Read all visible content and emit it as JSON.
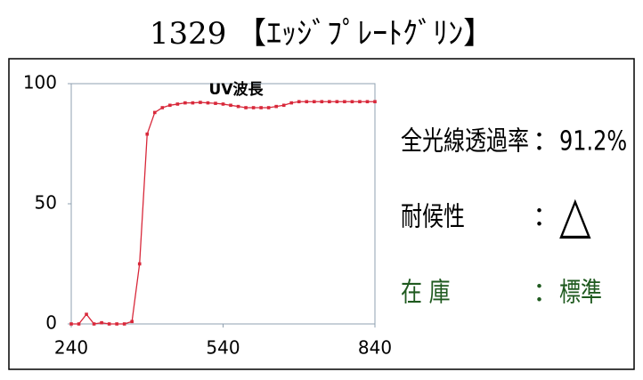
{
  "header": {
    "title": "1329 【ｴｯｼﾞﾌﾟﾚｰﾄｸﾞﾘﾝ】"
  },
  "specs": [
    {
      "label": "全光線透過率",
      "sep": "：",
      "value": "91.2%",
      "color": "#000000"
    },
    {
      "label": "耐候性",
      "sep": "：",
      "value": "△",
      "color": "#000000"
    },
    {
      "label": "在 庫",
      "sep": "：",
      "value": "標準",
      "color": "#1f5a1f"
    }
  ],
  "chart_data": {
    "type": "line",
    "title": "UV波長",
    "x": [
      240,
      255,
      270,
      285,
      300,
      315,
      330,
      345,
      360,
      375,
      390,
      405,
      420,
      435,
      450,
      465,
      480,
      495,
      510,
      525,
      540,
      555,
      570,
      585,
      600,
      615,
      630,
      645,
      660,
      675,
      690,
      705,
      720,
      735,
      750,
      765,
      780,
      795,
      810,
      825,
      840
    ],
    "series": [
      {
        "color": "#d8283a",
        "values": [
          0,
          0,
          4,
          0,
          0.5,
          0,
          0,
          0,
          1,
          25,
          79,
          88,
          90,
          91,
          91.5,
          92,
          92,
          92.2,
          92,
          91.8,
          91.5,
          91,
          90.5,
          90,
          90,
          90,
          90,
          90.5,
          91,
          92,
          92.5,
          92.5,
          92.5,
          92.5,
          92.5,
          92.5,
          92.5,
          92.5,
          92.5,
          92.5,
          92.5
        ]
      }
    ],
    "xlim": [
      240,
      840
    ],
    "xticks": [
      240,
      540,
      840
    ],
    "ylim": [
      0,
      100
    ],
    "yticks": [
      0,
      50,
      100
    ]
  }
}
